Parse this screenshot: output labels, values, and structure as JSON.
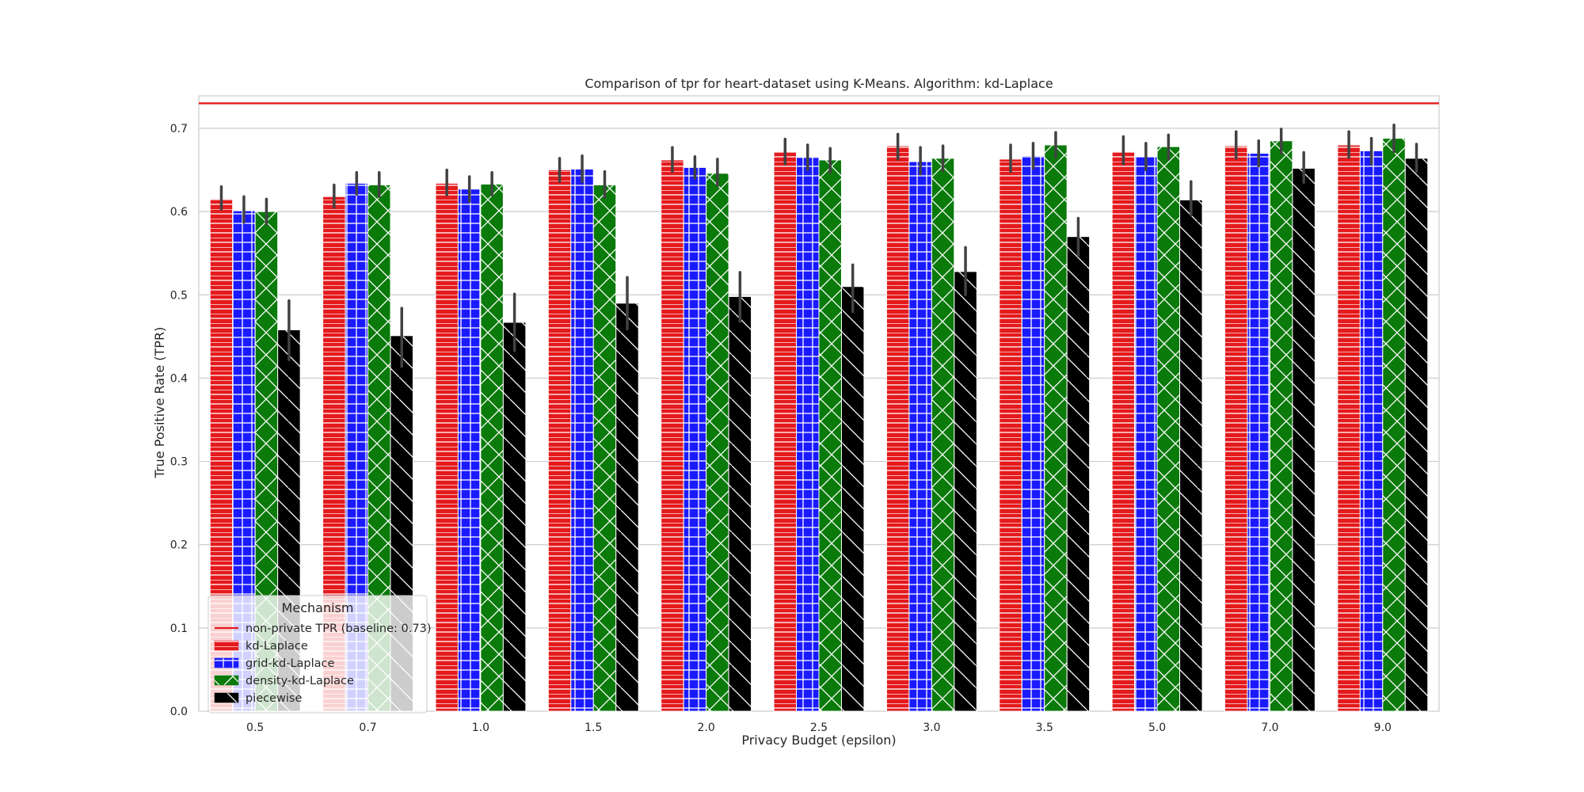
{
  "chart_data": {
    "type": "bar",
    "title": "Comparison of tpr for heart-dataset using K-Means. Algorithm: kd-Laplace",
    "xlabel": "Privacy Budget (epsilon)",
    "ylabel": "True Positive Rate (TPR)",
    "categories": [
      "0.5",
      "0.7",
      "1.0",
      "1.5",
      "2.0",
      "2.5",
      "3.0",
      "3.5",
      "5.0",
      "7.0",
      "9.0"
    ],
    "ylim": [
      0,
      0.7
    ],
    "yticks": [
      "0.0",
      "0.1",
      "0.2",
      "0.3",
      "0.4",
      "0.5",
      "0.6",
      "0.7"
    ],
    "grid": true,
    "baseline": {
      "label": "non-private TPR (baseline: 0.73)",
      "value": 0.73,
      "color": "#e41a1c"
    },
    "series": [
      {
        "name": "kd-Laplace",
        "color": "#e41a1c",
        "hatch": "horizontal",
        "values": [
          0.615,
          0.618,
          0.634,
          0.65,
          0.662,
          0.672,
          0.679,
          0.663,
          0.672,
          0.679,
          0.68
        ],
        "err_low": [
          0.603,
          0.605,
          0.62,
          0.636,
          0.648,
          0.657,
          0.663,
          0.648,
          0.657,
          0.664,
          0.665
        ],
        "err_high": [
          0.63,
          0.632,
          0.65,
          0.664,
          0.677,
          0.687,
          0.693,
          0.68,
          0.69,
          0.696,
          0.696
        ]
      },
      {
        "name": "grid-kd-Laplace",
        "color": "#1a1aff",
        "hatch": "grid",
        "values": [
          0.601,
          0.634,
          0.627,
          0.651,
          0.653,
          0.665,
          0.66,
          0.667,
          0.666,
          0.67,
          0.673
        ],
        "err_low": [
          0.587,
          0.621,
          0.612,
          0.636,
          0.64,
          0.65,
          0.645,
          0.652,
          0.65,
          0.655,
          0.657
        ],
        "err_high": [
          0.618,
          0.647,
          0.642,
          0.667,
          0.666,
          0.68,
          0.677,
          0.682,
          0.682,
          0.685,
          0.688
        ]
      },
      {
        "name": "density-kd-Laplace",
        "color": "#0a7a0a",
        "hatch": "cross",
        "values": [
          0.6,
          0.632,
          0.633,
          0.632,
          0.646,
          0.662,
          0.664,
          0.68,
          0.678,
          0.685,
          0.688
        ],
        "err_low": [
          0.585,
          0.618,
          0.62,
          0.617,
          0.631,
          0.647,
          0.649,
          0.665,
          0.663,
          0.67,
          0.672
        ],
        "err_high": [
          0.615,
          0.647,
          0.647,
          0.648,
          0.663,
          0.676,
          0.679,
          0.695,
          0.692,
          0.699,
          0.704
        ]
      },
      {
        "name": "piecewise",
        "color": "#000000",
        "hatch": "diagonal",
        "values": [
          0.458,
          0.451,
          0.467,
          0.49,
          0.498,
          0.51,
          0.528,
          0.57,
          0.614,
          0.652,
          0.664
        ],
        "err_low": [
          0.422,
          0.414,
          0.433,
          0.459,
          0.468,
          0.48,
          0.5,
          0.547,
          0.596,
          0.635,
          0.648
        ],
        "err_high": [
          0.493,
          0.484,
          0.501,
          0.521,
          0.527,
          0.536,
          0.557,
          0.592,
          0.636,
          0.671,
          0.681
        ]
      }
    ],
    "legend": {
      "title": "Mechanism",
      "placement": "lower-left"
    }
  }
}
